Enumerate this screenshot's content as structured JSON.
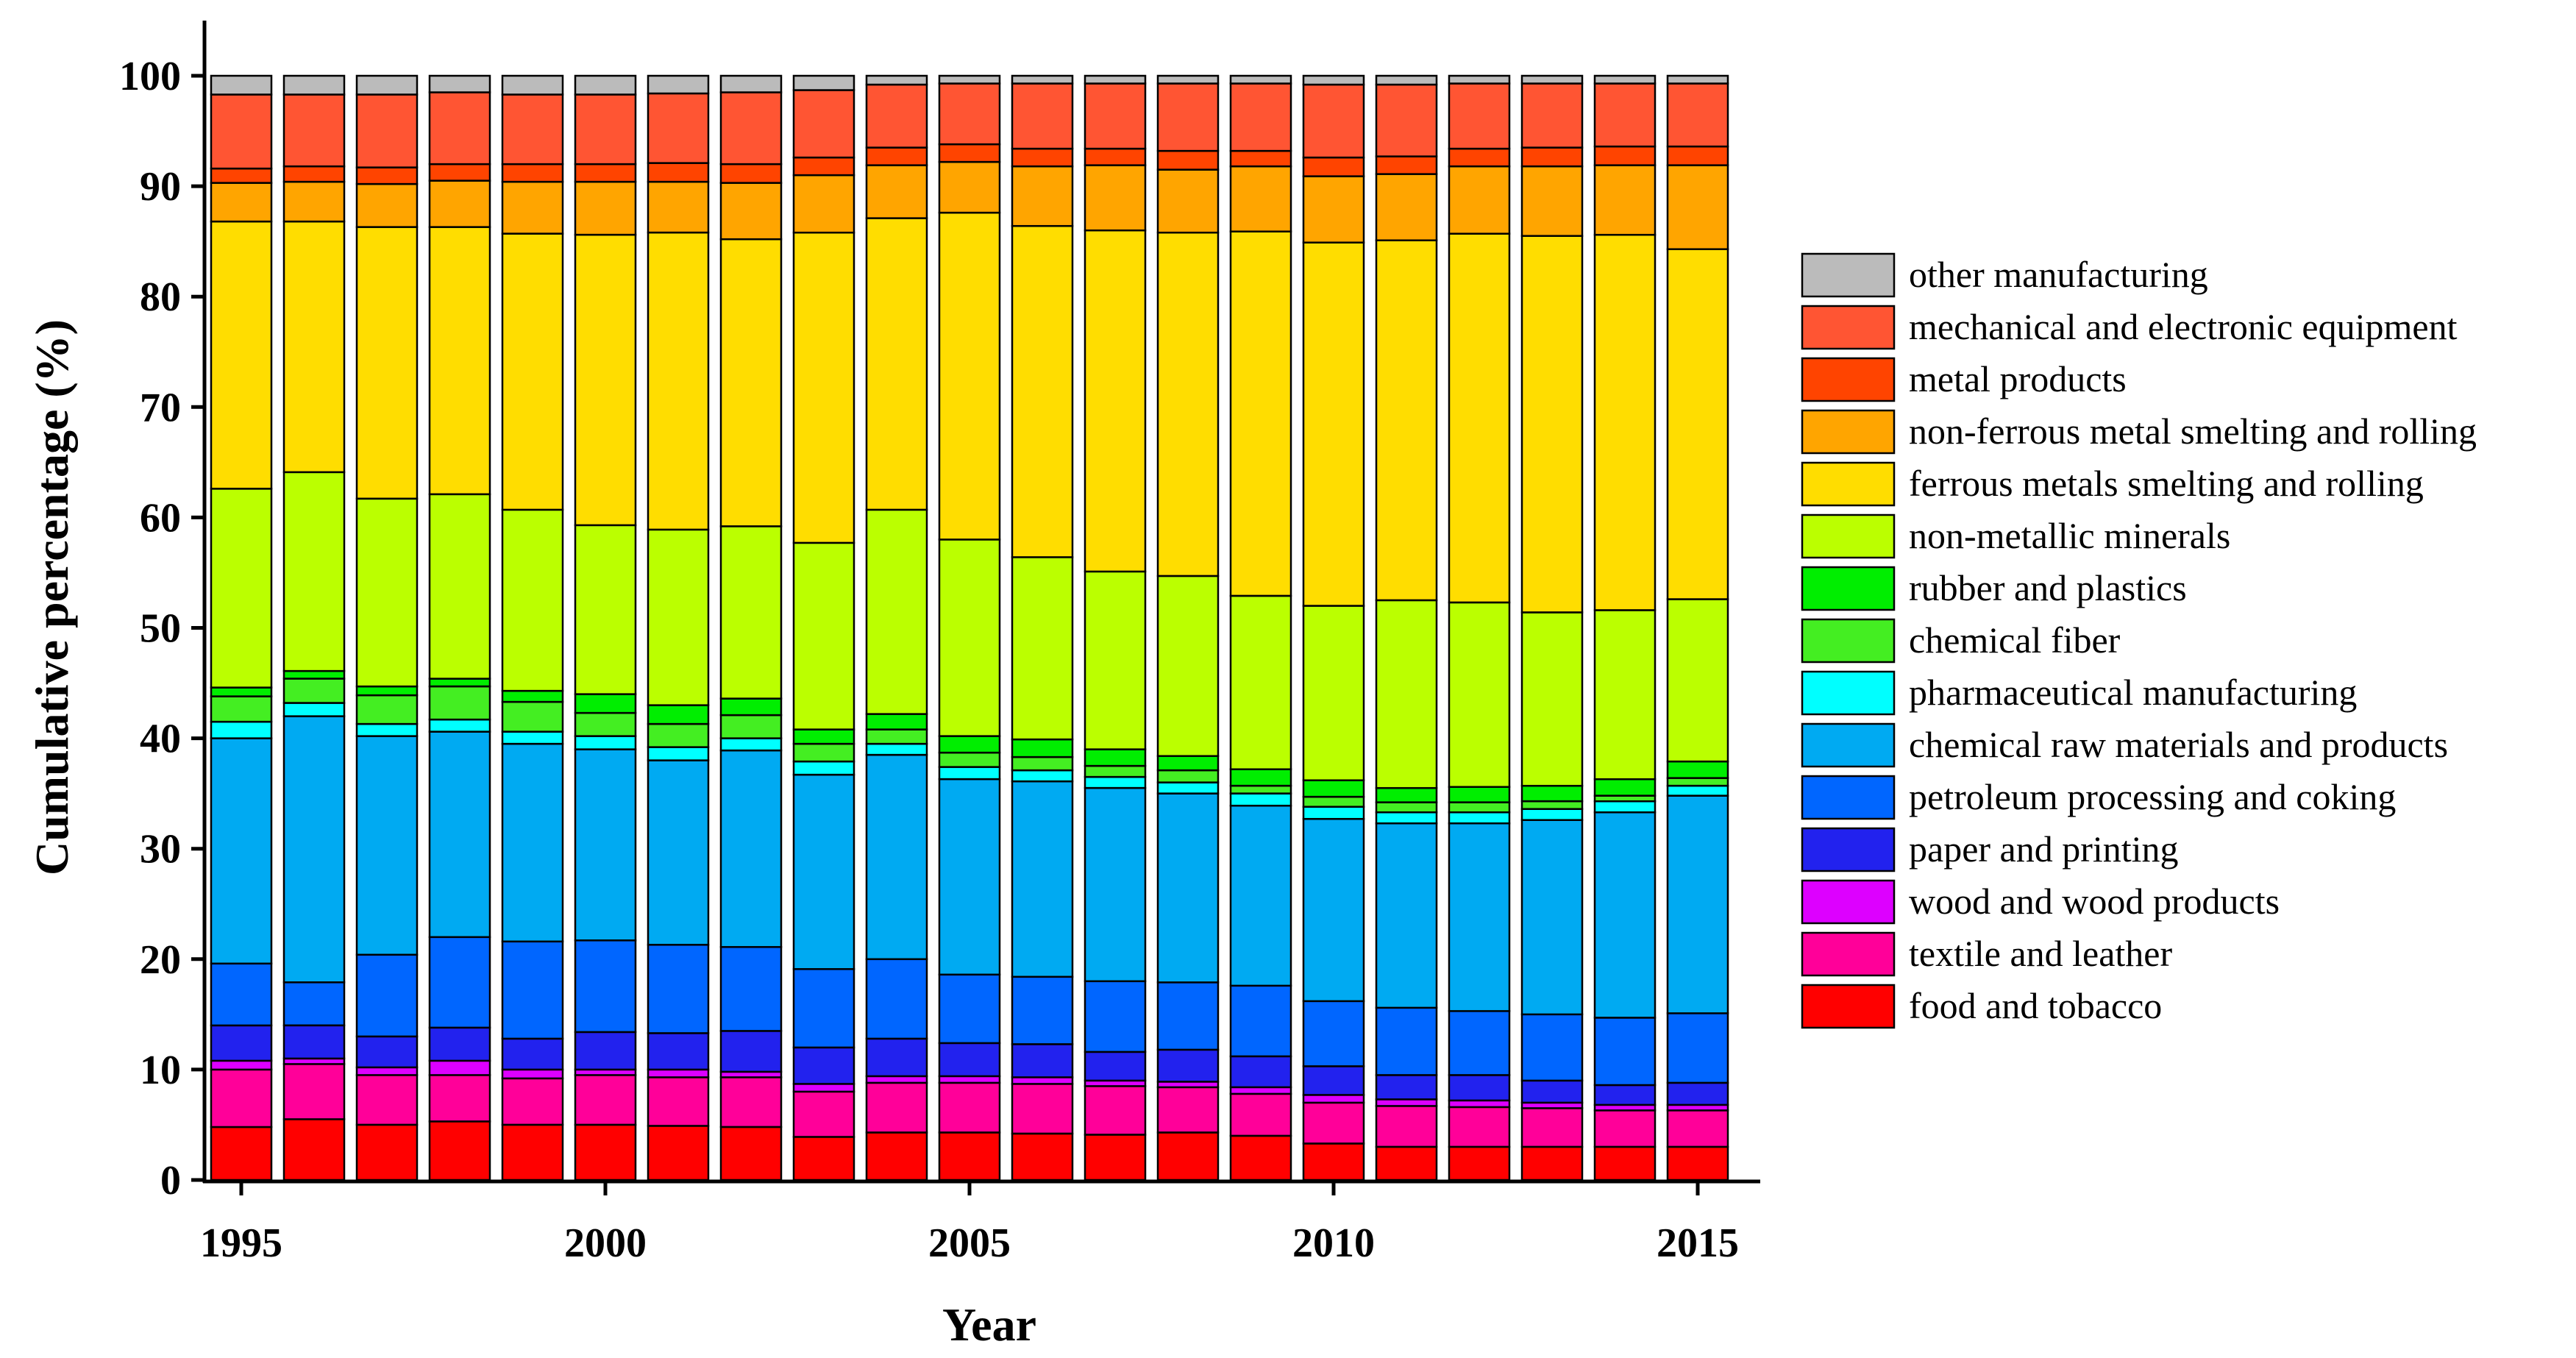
{
  "chart_data": {
    "type": "stacked-bar",
    "xlabel": "Year",
    "ylabel": "Cumulative percentage (%)",
    "ylim": [
      0,
      105
    ],
    "yticks": [
      0,
      10,
      20,
      30,
      40,
      50,
      60,
      70,
      80,
      90,
      100
    ],
    "xticks": [
      "1995",
      "2000",
      "2005",
      "2010",
      "2015"
    ],
    "legend_position": "right",
    "categories": [
      "1995",
      "1996",
      "1997",
      "1998",
      "1999",
      "2000",
      "2001",
      "2002",
      "2003",
      "2004",
      "2005",
      "2006",
      "2007",
      "2008",
      "2009",
      "2010",
      "2011",
      "2012",
      "2013",
      "2014",
      "2015"
    ],
    "series": [
      {
        "name": "food and tobacco",
        "color": "#FF0000",
        "cumulative": [
          4.8,
          5.5,
          5.0,
          5.3,
          5.0,
          5.0,
          4.9,
          4.8,
          3.9,
          4.3,
          4.3,
          4.2,
          4.1,
          4.3,
          4.0,
          3.3,
          3.0,
          3.0,
          3.0,
          3.0,
          3.0
        ]
      },
      {
        "name": "textile and leather",
        "color": "#FF0099",
        "cumulative": [
          10.0,
          10.5,
          9.5,
          9.5,
          9.2,
          9.5,
          9.3,
          9.3,
          8.0,
          8.8,
          8.8,
          8.7,
          8.5,
          8.4,
          7.8,
          7.0,
          6.7,
          6.6,
          6.5,
          6.3,
          6.3
        ]
      },
      {
        "name": "wood and wood products",
        "color": "#DD00FF",
        "cumulative": [
          10.8,
          11.0,
          10.2,
          10.8,
          10.0,
          10.0,
          10.0,
          9.8,
          8.7,
          9.4,
          9.4,
          9.3,
          9.0,
          8.9,
          8.4,
          7.7,
          7.3,
          7.2,
          7.0,
          6.8,
          6.8
        ]
      },
      {
        "name": "paper  and printing",
        "color": "#2222EE",
        "cumulative": [
          14.0,
          14.0,
          13.0,
          13.8,
          12.8,
          13.4,
          13.3,
          13.5,
          12.0,
          12.8,
          12.4,
          12.3,
          11.6,
          11.8,
          11.2,
          10.3,
          9.5,
          9.5,
          9.0,
          8.6,
          8.8
        ]
      },
      {
        "name": "petroleum processing and coking",
        "color": "#0066FF",
        "cumulative": [
          19.6,
          17.9,
          20.4,
          22.0,
          21.6,
          21.7,
          21.3,
          21.1,
          19.1,
          20.0,
          18.6,
          18.4,
          18.0,
          17.9,
          17.6,
          16.2,
          15.6,
          15.3,
          15.0,
          14.7,
          15.1
        ]
      },
      {
        "name": "chemical raw materials and products",
        "color": "#00AAF2",
        "cumulative": [
          40.0,
          42.0,
          40.2,
          40.6,
          39.5,
          39.0,
          38.0,
          38.9,
          36.7,
          38.5,
          36.3,
          36.1,
          35.5,
          35.0,
          33.9,
          32.7,
          32.3,
          32.3,
          32.6,
          33.3,
          34.8
        ]
      },
      {
        "name": "pharmaceutical manufacturing",
        "color": "#00FFFF",
        "cumulative": [
          41.5,
          43.2,
          41.3,
          41.7,
          40.6,
          40.2,
          39.2,
          40.0,
          37.9,
          39.5,
          37.4,
          37.1,
          36.5,
          36.0,
          35.0,
          33.8,
          33.3,
          33.3,
          33.6,
          34.3,
          35.7
        ]
      },
      {
        "name": "chemical fiber",
        "color": "#44EE22",
        "cumulative": [
          43.8,
          45.4,
          43.9,
          44.7,
          43.3,
          42.3,
          41.3,
          42.1,
          39.5,
          40.8,
          38.7,
          38.3,
          37.5,
          37.1,
          35.7,
          34.7,
          34.2,
          34.2,
          34.3,
          34.8,
          36.4
        ]
      },
      {
        "name": "rubber and plastics",
        "color": "#00EE00",
        "cumulative": [
          44.6,
          46.1,
          44.7,
          45.4,
          44.3,
          44.0,
          43.0,
          43.6,
          40.8,
          42.2,
          40.2,
          39.9,
          39.0,
          38.4,
          37.2,
          36.2,
          35.5,
          35.6,
          35.7,
          36.3,
          37.9
        ]
      },
      {
        "name": "non-metallic minerals",
        "color": "#BBFF00",
        "cumulative": [
          62.6,
          64.1,
          61.7,
          62.1,
          60.7,
          59.3,
          58.9,
          59.2,
          57.7,
          60.7,
          58.0,
          56.4,
          55.1,
          54.7,
          52.9,
          52.0,
          52.5,
          52.3,
          51.4,
          51.6,
          52.6
        ]
      },
      {
        "name": "ferrous metals smelting and rolling",
        "color": "#FFDD00",
        "cumulative": [
          86.8,
          86.8,
          86.3,
          86.3,
          85.7,
          85.6,
          85.8,
          85.2,
          85.8,
          87.1,
          87.6,
          86.4,
          86.0,
          85.8,
          85.9,
          84.9,
          85.1,
          85.7,
          85.5,
          85.6,
          84.3
        ]
      },
      {
        "name": "non-ferrous metal smelting and rolling",
        "color": "#FFA500",
        "cumulative": [
          90.3,
          90.4,
          90.2,
          90.5,
          90.4,
          90.4,
          90.4,
          90.3,
          91.0,
          91.9,
          92.2,
          91.8,
          91.9,
          91.5,
          91.8,
          90.9,
          91.1,
          91.8,
          91.8,
          91.9,
          91.9
        ]
      },
      {
        "name": "metal products",
        "color": "#FF4400",
        "cumulative": [
          91.6,
          91.8,
          91.7,
          92.0,
          92.0,
          92.0,
          92.1,
          92.0,
          92.6,
          93.5,
          93.8,
          93.4,
          93.4,
          93.2,
          93.2,
          92.6,
          92.7,
          93.4,
          93.5,
          93.6,
          93.6
        ]
      },
      {
        "name": "mechanical and electronic equipment",
        "color": "#FF5533",
        "cumulative": [
          98.3,
          98.3,
          98.3,
          98.5,
          98.3,
          98.3,
          98.4,
          98.5,
          98.7,
          99.2,
          99.3,
          99.3,
          99.3,
          99.3,
          99.3,
          99.2,
          99.2,
          99.3,
          99.3,
          99.3,
          99.3
        ]
      },
      {
        "name": "other manufacturing",
        "color": "#BBBBBB",
        "cumulative": [
          100,
          100,
          100,
          100,
          100,
          100,
          100,
          100,
          100,
          100,
          100,
          100,
          100,
          100,
          100,
          100,
          100,
          100,
          100,
          100,
          100
        ]
      }
    ]
  }
}
